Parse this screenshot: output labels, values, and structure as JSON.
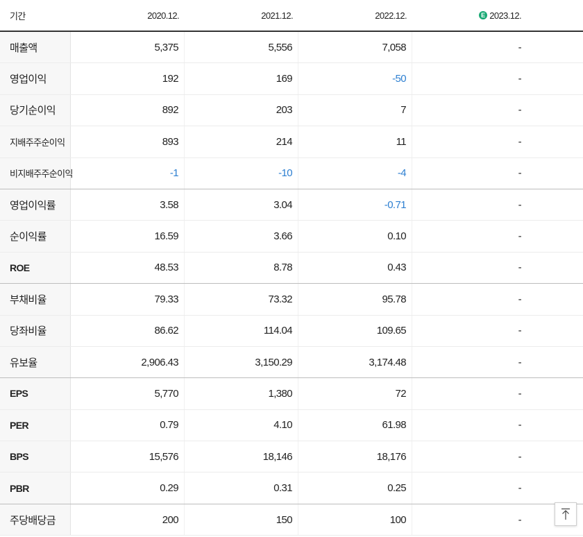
{
  "header": {
    "label": "기간",
    "columns": [
      "2020.12.",
      "2021.12.",
      "2022.12.",
      "2023.12."
    ],
    "estimate_badge": "E"
  },
  "rows": [
    {
      "label": "매출액",
      "values": [
        "5,375",
        "5,556",
        "7,058",
        "-"
      ]
    },
    {
      "label": "영업이익",
      "values": [
        "192",
        "169",
        "-50",
        "-"
      ]
    },
    {
      "label": "당기순이익",
      "values": [
        "892",
        "203",
        "7",
        "-"
      ]
    },
    {
      "label": "지배주주순이익",
      "values": [
        "893",
        "214",
        "11",
        "-"
      ]
    },
    {
      "label": "비지배주주순이익",
      "values": [
        "-1",
        "-10",
        "-4",
        "-"
      ]
    },
    {
      "label": "영업이익률",
      "values": [
        "3.58",
        "3.04",
        "-0.71",
        "-"
      ]
    },
    {
      "label": "순이익률",
      "values": [
        "16.59",
        "3.66",
        "0.10",
        "-"
      ]
    },
    {
      "label": "ROE",
      "values": [
        "48.53",
        "8.78",
        "0.43",
        "-"
      ]
    },
    {
      "label": "부채비율",
      "values": [
        "79.33",
        "73.32",
        "95.78",
        "-"
      ]
    },
    {
      "label": "당좌비율",
      "values": [
        "86.62",
        "114.04",
        "109.65",
        "-"
      ]
    },
    {
      "label": "유보율",
      "values": [
        "2,906.43",
        "3,150.29",
        "3,174.48",
        "-"
      ]
    },
    {
      "label": "EPS",
      "values": [
        "5,770",
        "1,380",
        "72",
        "-"
      ]
    },
    {
      "label": "PER",
      "values": [
        "0.79",
        "4.10",
        "61.98",
        "-"
      ]
    },
    {
      "label": "BPS",
      "values": [
        "15,576",
        "18,146",
        "18,176",
        "-"
      ]
    },
    {
      "label": "PBR",
      "values": [
        "0.29",
        "0.31",
        "0.25",
        "-"
      ]
    },
    {
      "label": "주당배당금",
      "values": [
        "200",
        "150",
        "100",
        "-"
      ]
    }
  ],
  "colors": {
    "negative": "#2d7fd1",
    "estimate_badge": "#19a974"
  },
  "icons": {
    "scroll_top": "arrow-up-to-line-icon"
  }
}
